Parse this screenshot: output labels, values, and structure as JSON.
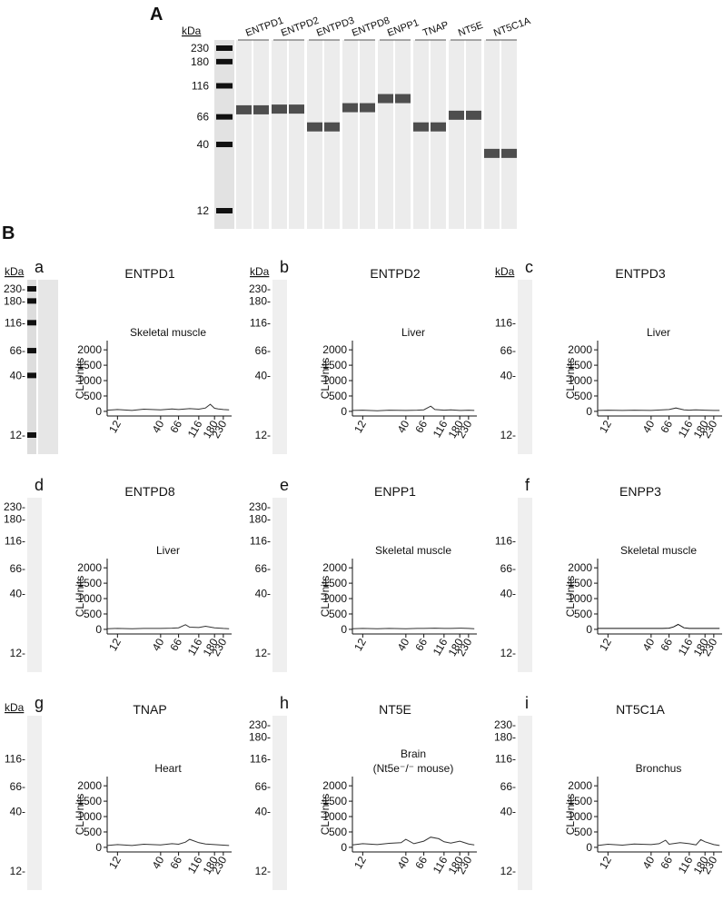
{
  "panel_a": {
    "label": "A",
    "unit": "kDa",
    "markers": [
      230,
      180,
      116,
      66,
      40,
      12
    ],
    "lanes": [
      "ENTPD1",
      "ENTPD2",
      "ENTPD3",
      "ENTPD8",
      "ENPP1",
      "TNAP",
      "NT5E",
      "NT5C1A"
    ],
    "band_kda": [
      75,
      76,
      55,
      78,
      92,
      55,
      68,
      34
    ]
  },
  "panel_b_label": "B",
  "chart_data": [
    {
      "type": "line",
      "letter": "a",
      "title": "ENTPD1",
      "subtitle": [
        "Skeletal muscle"
      ],
      "ylabel": "CL Units",
      "color": "#333",
      "blot_label": "kDa",
      "blot_ticks": [
        {
          "value": 230,
          "label": "230-"
        },
        {
          "value": 180,
          "label": "180-"
        },
        {
          "value": 116,
          "label": "116-"
        },
        {
          "value": 66,
          "label": "66-"
        },
        {
          "value": 40,
          "label": "40-"
        },
        {
          "value": 12,
          "label": "12-"
        }
      ],
      "ylim": [
        -150,
        2300
      ],
      "yticks": [
        0,
        500,
        1000,
        1500,
        2000
      ],
      "xscale": "log",
      "xlim": [
        9,
        290
      ],
      "xticks": [
        12,
        40,
        66,
        116,
        180,
        230
      ],
      "x": [
        9,
        12,
        18,
        25,
        40,
        55,
        66,
        90,
        116,
        140,
        160,
        180,
        200,
        230,
        270
      ],
      "values": [
        40,
        60,
        30,
        70,
        50,
        80,
        60,
        90,
        70,
        110,
        230,
        100,
        80,
        60,
        50
      ]
    },
    {
      "type": "line",
      "letter": "b",
      "title": "ENTPD2",
      "subtitle": [
        "Liver"
      ],
      "ylabel": "CL Units",
      "color": "#333",
      "blot_label": "kDa",
      "blot_ticks": [
        {
          "value": 230,
          "label": "230-"
        },
        {
          "value": 180,
          "label": "180-"
        },
        {
          "value": 116,
          "label": "116-"
        },
        {
          "value": 66,
          "label": "66-"
        },
        {
          "value": 40,
          "label": "40-"
        },
        {
          "value": 12,
          "label": "12-"
        }
      ],
      "ylim": [
        -150,
        2300
      ],
      "yticks": [
        0,
        500,
        1000,
        1500,
        2000
      ],
      "xscale": "log",
      "xlim": [
        9,
        290
      ],
      "xticks": [
        12,
        40,
        66,
        116,
        180,
        230
      ],
      "x": [
        9,
        12,
        18,
        25,
        40,
        55,
        66,
        80,
        90,
        116,
        140,
        180,
        230,
        270
      ],
      "values": [
        30,
        40,
        20,
        40,
        30,
        40,
        50,
        170,
        60,
        40,
        50,
        30,
        40,
        30
      ]
    },
    {
      "type": "line",
      "letter": "c",
      "title": "ENTPD3",
      "subtitle": [
        "Liver"
      ],
      "ylabel": "CL Units",
      "color": "#333",
      "blot_label": "kDa",
      "blot_ticks": [
        {
          "value": 116,
          "label": "116-"
        },
        {
          "value": 66,
          "label": "66-"
        },
        {
          "value": 40,
          "label": "40-"
        },
        {
          "value": 12,
          "label": "12-"
        }
      ],
      "ylim": [
        -150,
        2300
      ],
      "yticks": [
        0,
        500,
        1000,
        1500,
        2000
      ],
      "xscale": "log",
      "xlim": [
        9,
        290
      ],
      "xticks": [
        12,
        40,
        66,
        116,
        180,
        230
      ],
      "x": [
        9,
        12,
        18,
        25,
        40,
        55,
        66,
        80,
        100,
        116,
        140,
        180,
        230,
        270
      ],
      "values": [
        30,
        40,
        30,
        40,
        30,
        50,
        60,
        110,
        50,
        40,
        50,
        40,
        30,
        30
      ]
    },
    {
      "type": "line",
      "letter": "d",
      "title": "ENTPD8",
      "subtitle": [
        "Liver"
      ],
      "ylabel": "CL Units",
      "color": "#333",
      "blot_ticks": [
        {
          "value": 230,
          "label": "230-"
        },
        {
          "value": 180,
          "label": "180-"
        },
        {
          "value": 116,
          "label": "116-"
        },
        {
          "value": 66,
          "label": "66-"
        },
        {
          "value": 40,
          "label": "40-"
        },
        {
          "value": 12,
          "label": "12-"
        }
      ],
      "ylim": [
        -150,
        2300
      ],
      "yticks": [
        0,
        500,
        1000,
        1500,
        2000
      ],
      "xscale": "log",
      "xlim": [
        9,
        290
      ],
      "xticks": [
        12,
        40,
        66,
        116,
        180,
        230
      ],
      "x": [
        9,
        12,
        18,
        25,
        40,
        55,
        66,
        80,
        90,
        116,
        140,
        180,
        230,
        270
      ],
      "values": [
        20,
        30,
        20,
        30,
        30,
        40,
        50,
        150,
        70,
        60,
        100,
        50,
        30,
        20
      ]
    },
    {
      "type": "line",
      "letter": "e",
      "title": "ENPP1",
      "subtitle": [
        "Skeletal muscle"
      ],
      "ylabel": "CL Units",
      "color": "#333",
      "blot_ticks": [
        {
          "value": 230,
          "label": "230-"
        },
        {
          "value": 180,
          "label": "180-"
        },
        {
          "value": 116,
          "label": "116-"
        },
        {
          "value": 66,
          "label": "66-"
        },
        {
          "value": 40,
          "label": "40-"
        },
        {
          "value": 12,
          "label": "12-"
        }
      ],
      "ylim": [
        -150,
        2300
      ],
      "yticks": [
        0,
        500,
        1000,
        1500,
        2000
      ],
      "xscale": "log",
      "xlim": [
        9,
        290
      ],
      "xticks": [
        12,
        40,
        66,
        116,
        180,
        230
      ],
      "x": [
        9,
        12,
        18,
        25,
        40,
        55,
        66,
        90,
        116,
        140,
        180,
        230,
        270
      ],
      "values": [
        20,
        30,
        20,
        30,
        20,
        30,
        30,
        40,
        30,
        30,
        40,
        30,
        20
      ]
    },
    {
      "type": "line",
      "letter": "f",
      "title": "ENPP3",
      "subtitle": [
        "Skeletal muscle"
      ],
      "ylabel": "CL Units",
      "color": "#111",
      "blot_ticks": [
        {
          "value": 116,
          "label": "116-"
        },
        {
          "value": 66,
          "label": "66-"
        },
        {
          "value": 40,
          "label": "40-"
        },
        {
          "value": 12,
          "label": "12-"
        }
      ],
      "ylim": [
        -150,
        2300
      ],
      "yticks": [
        0,
        500,
        1000,
        1500,
        2000
      ],
      "xscale": "log",
      "xlim": [
        9,
        290
      ],
      "xticks": [
        12,
        40,
        66,
        116,
        180,
        230
      ],
      "x": [
        9,
        12,
        25,
        40,
        55,
        66,
        75,
        85,
        100,
        116,
        180,
        230,
        270
      ],
      "values": [
        30,
        30,
        30,
        30,
        30,
        40,
        80,
        160,
        50,
        30,
        30,
        30,
        30
      ]
    },
    {
      "type": "line",
      "letter": "g",
      "title": "TNAP",
      "subtitle": [
        "Heart"
      ],
      "ylabel": "CL Units",
      "color": "#333",
      "blot_label": "kDa",
      "blot_ticks": [
        {
          "value": 116,
          "label": "116-"
        },
        {
          "value": 66,
          "label": "66-"
        },
        {
          "value": 40,
          "label": "40-"
        },
        {
          "value": 12,
          "label": "12-"
        }
      ],
      "ylim": [
        -150,
        2300
      ],
      "yticks": [
        0,
        500,
        1000,
        1500,
        2000
      ],
      "xscale": "log",
      "xlim": [
        9,
        290
      ],
      "xticks": [
        12,
        40,
        66,
        116,
        180,
        230
      ],
      "x": [
        9,
        12,
        18,
        25,
        40,
        55,
        66,
        80,
        90,
        116,
        140,
        180,
        230,
        270
      ],
      "values": [
        60,
        90,
        60,
        100,
        80,
        120,
        100,
        170,
        260,
        150,
        110,
        90,
        70,
        60
      ]
    },
    {
      "type": "line",
      "letter": "h",
      "title": "NT5E",
      "subtitle": [
        "Brain",
        "(Nt5e⁻/⁻ mouse)"
      ],
      "ylabel": "CL Units",
      "color": "#333",
      "blot_ticks": [
        {
          "value": 230,
          "label": "230-"
        },
        {
          "value": 180,
          "label": "180-"
        },
        {
          "value": 116,
          "label": "116-"
        },
        {
          "value": 66,
          "label": "66-"
        },
        {
          "value": 40,
          "label": "40-"
        },
        {
          "value": 12,
          "label": "12-"
        }
      ],
      "ylim": [
        -150,
        2300
      ],
      "yticks": [
        0,
        500,
        1000,
        1500,
        2000
      ],
      "xscale": "log",
      "xlim": [
        9,
        290
      ],
      "xticks": [
        12,
        40,
        66,
        116,
        180,
        230
      ],
      "x": [
        9,
        12,
        18,
        25,
        35,
        40,
        50,
        66,
        80,
        100,
        116,
        140,
        180,
        230,
        270
      ],
      "values": [
        80,
        120,
        90,
        130,
        150,
        260,
        120,
        200,
        330,
        280,
        180,
        140,
        200,
        110,
        80
      ]
    },
    {
      "type": "line",
      "letter": "i",
      "title": "NT5C1A",
      "subtitle": [
        "Bronchus"
      ],
      "ylabel": "CL Units",
      "color": "#333",
      "blot_ticks": [
        {
          "value": 230,
          "label": "230-"
        },
        {
          "value": 180,
          "label": "180-"
        },
        {
          "value": 116,
          "label": "116-"
        },
        {
          "value": 66,
          "label": "66-"
        },
        {
          "value": 40,
          "label": "40-"
        },
        {
          "value": 12,
          "label": "12-"
        }
      ],
      "ylim": [
        -150,
        2300
      ],
      "yticks": [
        0,
        500,
        1000,
        1500,
        2000
      ],
      "xscale": "log",
      "xlim": [
        9,
        290
      ],
      "xticks": [
        12,
        40,
        66,
        116,
        180,
        230
      ],
      "x": [
        9,
        12,
        18,
        25,
        40,
        50,
        60,
        66,
        90,
        116,
        140,
        160,
        180,
        230,
        270
      ],
      "values": [
        60,
        100,
        70,
        110,
        90,
        120,
        230,
        100,
        150,
        120,
        80,
        250,
        180,
        90,
        60
      ]
    }
  ]
}
